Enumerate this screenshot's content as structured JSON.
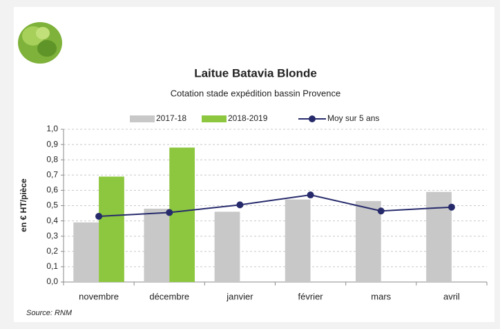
{
  "chart_data": {
    "type": "bar",
    "title": "Laitue Batavia Blonde",
    "subtitle": "Cotation stade expédition bassin Provence",
    "y_label": "en € HT/pièce",
    "source": "Source: RNM",
    "categories": [
      "novembre",
      "décembre",
      "janvier",
      "février",
      "mars",
      "avril"
    ],
    "series": [
      {
        "name": "2017-18",
        "color": "#c8c8c8",
        "type": "bar",
        "values": [
          0.39,
          0.48,
          0.46,
          0.54,
          0.53,
          0.59
        ]
      },
      {
        "name": "2018-2019",
        "color": "#8dc63f",
        "type": "bar",
        "values": [
          0.69,
          0.88,
          null,
          null,
          null,
          null
        ]
      },
      {
        "name": "Moy sur 5 ans",
        "color": "#262a6b",
        "type": "line",
        "values": [
          0.43,
          0.455,
          0.505,
          0.57,
          0.465,
          0.49
        ]
      }
    ],
    "ylim": [
      0,
      1
    ],
    "yticks": [
      {
        "value": 0,
        "label": "0,0"
      },
      {
        "value": 0.1,
        "label": "0,1"
      },
      {
        "value": 0.2,
        "label": "0,2"
      },
      {
        "value": 0.3,
        "label": "0,3"
      },
      {
        "value": 0.4,
        "label": "0,4"
      },
      {
        "value": 0.5,
        "label": "0,5"
      },
      {
        "value": 0.6,
        "label": "0,6"
      },
      {
        "value": 0.7,
        "label": "0,7"
      },
      {
        "value": 0.8,
        "label": "0,8"
      },
      {
        "value": 0.9,
        "label": "0,9"
      },
      {
        "value": 1,
        "label": "1,0"
      }
    ],
    "grid": true,
    "legend": "top"
  }
}
